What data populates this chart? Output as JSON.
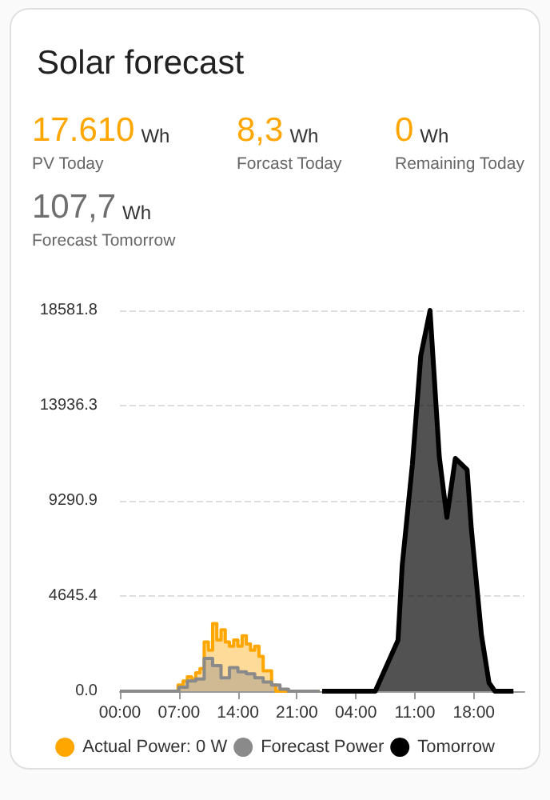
{
  "chart_data": {
    "type": "area",
    "title": "Solar forecast",
    "annotations": [
      "17.610 Wh",
      "PV Today",
      "8,3 Wh",
      "Forcast Today",
      "0 Wh",
      "Remaining Today",
      "107,7 Wh",
      "Forecast Tomorrow"
    ],
    "xlim": [
      "--01-01T00:00",
      "--01-03T00:00"
    ],
    "xticks": [
      {
        "value": "--01-01T00:00",
        "label": "00:00"
      },
      {
        "value": "--01-01T07:00",
        "label": "07:00"
      },
      {
        "value": "--01-01T14:00",
        "label": "14:00"
      },
      {
        "value": "--01-01T21:00",
        "label": "21:00"
      },
      {
        "value": "--01-02T04:00",
        "label": "04:00"
      },
      {
        "value": "--01-02T11:00",
        "label": "11:00"
      },
      {
        "value": "--01-02T18:00",
        "label": "18:00"
      }
    ],
    "ylim": [
      0,
      18581.8
    ],
    "yticks": [
      {
        "value": 0,
        "label": "0.0"
      },
      4645.4,
      9290.9,
      13936.3,
      18581.8
    ],
    "grid": "y",
    "legend": "bottom",
    "marker": "none",
    "series": [
      {
        "name": "Actual Power: 0 W",
        "type": "step",
        "color": "#ffa600",
        "x": [
          "--01-01T00:00",
          "--01-01T06:54",
          "--01-01T07:30",
          "--01-01T08:00",
          "--01-01T08:30",
          "--01-01T09:00",
          "--01-01T09:30",
          "--01-01T10:00",
          "--01-01T10:30",
          "--01-01T11:00",
          "--01-01T11:30",
          "--01-01T12:00",
          "--01-01T12:30",
          "--01-01T13:00",
          "--01-01T13:30",
          "--01-01T14:00",
          "--01-01T14:30",
          "--01-01T15:00",
          "--01-01T15:30",
          "--01-01T16:00",
          "--01-01T16:30",
          "--01-01T17:00",
          "--01-01T17:30",
          "--01-01T18:00",
          "--01-01T18:30",
          "--01-01T23:42"
        ],
        "values": [
          0,
          300,
          500,
          700,
          600,
          900,
          1100,
          2400,
          2000,
          3300,
          2500,
          3000,
          2400,
          2200,
          2500,
          2200,
          2700,
          2300,
          2000,
          2200,
          1700,
          1000,
          1000,
          300,
          0,
          0
        ]
      },
      {
        "name": "Forecast Power",
        "type": "step",
        "color": "#8a8a8a",
        "x": [
          "--01-01T00:00",
          "--01-01T07:00",
          "--01-01T08:00",
          "--01-01T09:00",
          "--01-01T10:00",
          "--01-01T11:00",
          "--01-01T12:00",
          "--01-01T13:00",
          "--01-01T14:00",
          "--01-01T15:00",
          "--01-01T16:00",
          "--01-01T17:00",
          "--01-01T18:00",
          "--01-01T19:00",
          "--01-01T20:00",
          "--01-01T23:42"
        ],
        "values": [
          0,
          200,
          500,
          600,
          1600,
          1250,
          650,
          1150,
          950,
          850,
          650,
          450,
          300,
          100,
          0,
          0
        ]
      },
      {
        "name": "Tomorrow",
        "type": "area",
        "color": "#000000",
        "x": [
          "--01-02T00:00",
          "--01-02T06:18",
          "--01-02T09:00",
          "--01-02T09:30",
          "--01-02T10:42",
          "--01-02T11:42",
          "--01-02T12:48",
          "--01-02T13:54",
          "--01-02T14:48",
          "--01-02T15:48",
          "--01-02T17:12",
          "--01-02T17:42",
          "--01-02T18:54",
          "--01-02T19:48",
          "--01-02T20:30",
          "--01-02T22:42"
        ],
        "values": [
          0,
          0,
          2490,
          6150,
          11050,
          16360,
          18580,
          11440,
          8480,
          11360,
          10810,
          7940,
          2750,
          410,
          0,
          0
        ]
      }
    ]
  }
}
